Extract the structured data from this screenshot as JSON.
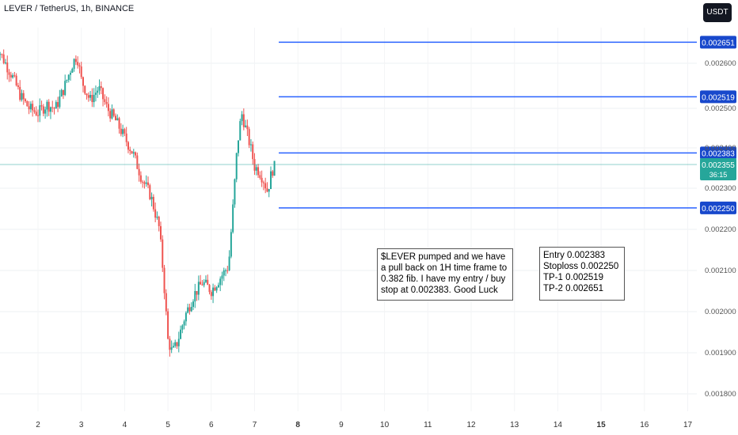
{
  "header": {
    "title": "LEVER / TetherUS, 1h, BINANCE",
    "currency_button": "USDT"
  },
  "annotations": {
    "analysis_note": "$LEVER pumped and we have a pull back on 1H time frame to 0.382 fib. I have my entry / buy stop at 0.002383. Good Luck",
    "levels_note": "Entry 0.002383\nStoploss 0.002250\nTP-1 0.002519\nTP-2 0.002651"
  },
  "colors": {
    "up": "#26a69a",
    "down": "#ef5350",
    "level_line": "#2962ff",
    "price_tag": "#26a69a",
    "label_bg": "#1848cc"
  },
  "chart_data": {
    "type": "candlestick",
    "title": "LEVER / TetherUS, 1h, BINANCE",
    "x_ticks": [
      "2",
      "3",
      "4",
      "5",
      "6",
      "7",
      "8",
      "9",
      "10",
      "11",
      "12",
      "13",
      "14",
      "15",
      "16",
      "17"
    ],
    "y_ticks": [
      "0.002600",
      "0.002500",
      "0.002400",
      "0.002300",
      "0.002200",
      "0.002100",
      "0.002000",
      "0.001900",
      "0.001800"
    ],
    "y_range": [
      0.00178,
      0.00267
    ],
    "grid": true,
    "levels": [
      {
        "label": "0.002651",
        "value": 0.002651
      },
      {
        "label": "0.002519",
        "value": 0.002519
      },
      {
        "label": "0.002383",
        "value": 0.002383
      },
      {
        "label": "0.002250",
        "value": 0.00225
      }
    ],
    "current_price": {
      "value": 0.002355,
      "label": "0.002355",
      "countdown": "36:15"
    },
    "series_path": [
      [
        1.0,
        0.00265
      ],
      [
        1.2,
        0.00261
      ],
      [
        1.4,
        0.00257
      ],
      [
        1.6,
        0.00252
      ],
      [
        1.8,
        0.00249
      ],
      [
        2.0,
        0.00248
      ],
      [
        2.2,
        0.0025
      ],
      [
        2.4,
        0.00249
      ],
      [
        2.6,
        0.00254
      ],
      [
        2.8,
        0.0026
      ],
      [
        2.9,
        0.00262
      ],
      [
        3.0,
        0.00256
      ],
      [
        3.2,
        0.00251
      ],
      [
        3.4,
        0.00254
      ],
      [
        3.6,
        0.00249
      ],
      [
        3.8,
        0.00246
      ],
      [
        4.0,
        0.00242
      ],
      [
        4.2,
        0.00238
      ],
      [
        4.4,
        0.00232
      ],
      [
        4.6,
        0.00228
      ],
      [
        4.8,
        0.0022
      ],
      [
        4.9,
        0.00208
      ],
      [
        5.0,
        0.00193
      ],
      [
        5.1,
        0.0019
      ],
      [
        5.2,
        0.00192
      ],
      [
        5.4,
        0.00199
      ],
      [
        5.6,
        0.00204
      ],
      [
        5.8,
        0.00207
      ],
      [
        6.0,
        0.00205
      ],
      [
        6.2,
        0.00208
      ],
      [
        6.4,
        0.00211
      ],
      [
        6.5,
        0.00225
      ],
      [
        6.6,
        0.0024
      ],
      [
        6.7,
        0.00248
      ],
      [
        6.8,
        0.00244
      ],
      [
        6.9,
        0.0024
      ],
      [
        7.0,
        0.00235
      ],
      [
        7.1,
        0.00234
      ],
      [
        7.2,
        0.00232
      ],
      [
        7.3,
        0.00229
      ],
      [
        7.4,
        0.00234
      ],
      [
        7.5,
        0.002355
      ]
    ]
  }
}
